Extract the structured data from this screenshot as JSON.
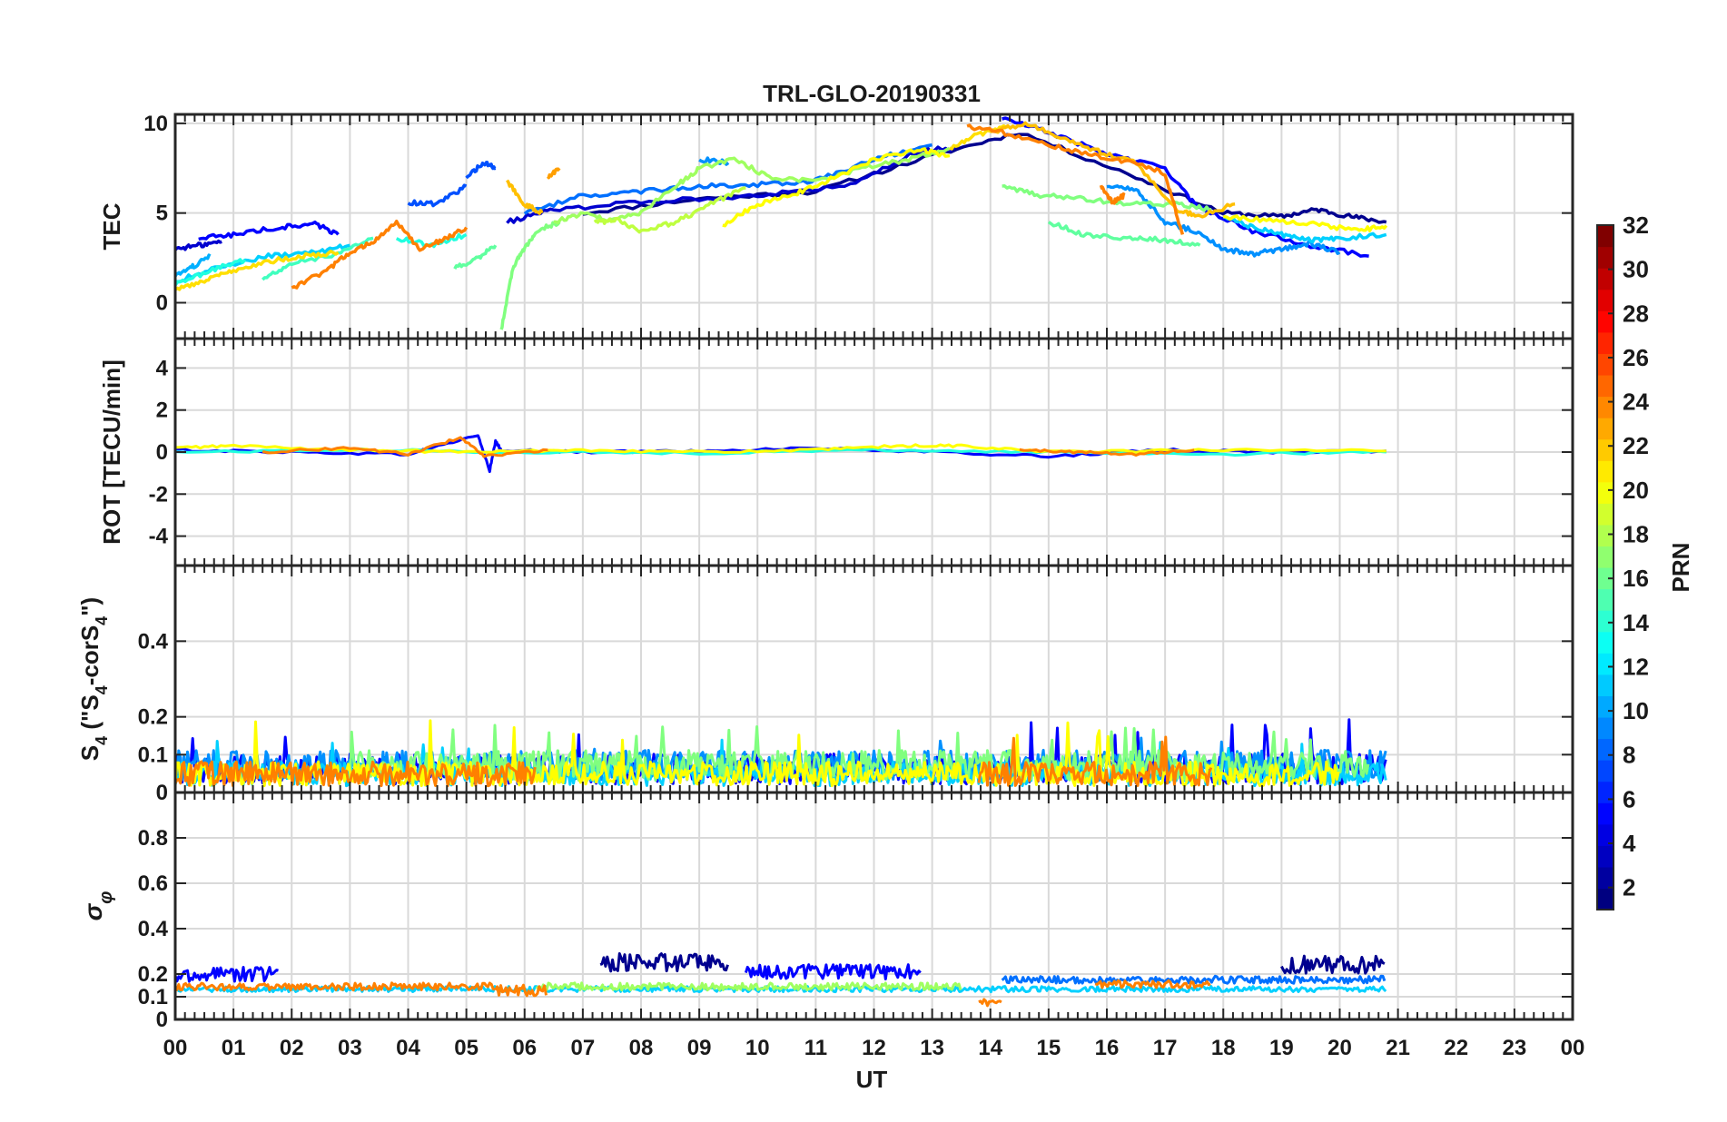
{
  "figure": {
    "title": "TRL-GLO-20190331",
    "x_label": "UT",
    "x_ticks": [
      "00",
      "01",
      "02",
      "03",
      "04",
      "05",
      "06",
      "07",
      "08",
      "09",
      "10",
      "11",
      "12",
      "13",
      "14",
      "15",
      "16",
      "17",
      "18",
      "19",
      "20",
      "21",
      "22",
      "23",
      "00"
    ],
    "colorbar_label": "PRN",
    "colorbar_ticks": [
      "2",
      "4",
      "6",
      "8",
      "10",
      "12",
      "14",
      "16",
      "18",
      "20",
      "22",
      "24",
      "26",
      "28",
      "30",
      "32"
    ]
  },
  "chart_data": [
    {
      "type": "line",
      "panel": "TEC",
      "ylabel": "TEC",
      "xlim": [
        0,
        24
      ],
      "ylim": [
        -2,
        10.5
      ],
      "y_ticks": [
        0,
        5,
        10
      ],
      "grid": true,
      "series": [
        {
          "prn": 1,
          "color": "#00008f",
          "x": [
            7.0,
            9.0,
            11.0,
            13.0,
            14.5,
            16.5,
            18.0,
            19.0,
            19.6,
            20.2,
            20.8
          ],
          "y": [
            5.0,
            5.8,
            6.2,
            8.2,
            9.5,
            7.0,
            5.0,
            4.8,
            5.2,
            4.8,
            4.5
          ]
        },
        {
          "prn": 3,
          "color": "#0000cf",
          "x": [
            0.0,
            0.4,
            0.8
          ],
          "y": [
            3.0,
            3.2,
            3.4
          ]
        },
        {
          "prn": 3,
          "color": "#0000cf",
          "x": [
            5.7,
            6.5,
            8.0,
            10.0,
            11.5,
            12.8,
            13.4
          ],
          "y": [
            4.5,
            5.2,
            5.6,
            6.0,
            6.5,
            8.5,
            8.6
          ]
        },
        {
          "prn": 4,
          "color": "#0000ff",
          "x": [
            0.4,
            1.0,
            1.8,
            2.4,
            2.8
          ],
          "y": [
            3.6,
            3.8,
            4.2,
            4.4,
            3.8
          ]
        },
        {
          "prn": 4,
          "color": "#0000ff",
          "x": [
            14.2,
            15.0,
            16.0,
            17.0,
            17.5,
            18.5,
            19.5,
            20.5
          ],
          "y": [
            10.3,
            9.5,
            8.3,
            7.5,
            5.5,
            4.0,
            3.2,
            2.6
          ]
        },
        {
          "prn": 8,
          "color": "#0050ff",
          "x": [
            4.0,
            4.5,
            5.0
          ],
          "y": [
            5.6,
            5.5,
            6.5
          ]
        },
        {
          "prn": 8,
          "color": "#0050ff",
          "x": [
            5.0,
            5.3,
            5.5
          ],
          "y": [
            7.0,
            7.8,
            7.5
          ]
        },
        {
          "prn": 9,
          "color": "#0070ff",
          "x": [
            6.0,
            7.0,
            8.0,
            9.0,
            10.0,
            11.0,
            12.0,
            13.0
          ],
          "y": [
            5.0,
            6.0,
            6.2,
            6.5,
            6.6,
            6.8,
            8.0,
            8.8
          ]
        },
        {
          "prn": 10,
          "color": "#0090ff",
          "x": [
            9.0,
            9.5
          ],
          "y": [
            8.0,
            7.8
          ]
        },
        {
          "prn": 10,
          "color": "#0090ff",
          "x": [
            16.0,
            16.5,
            17.0,
            17.5,
            18.0,
            18.5,
            19.0,
            19.5,
            20.0
          ],
          "y": [
            6.5,
            6.3,
            4.5,
            4.0,
            3.0,
            2.7,
            3.0,
            3.3,
            2.8
          ]
        },
        {
          "prn": 12,
          "color": "#00b0ff",
          "x": [
            0.0,
            0.3,
            0.6
          ],
          "y": [
            1.5,
            2.0,
            2.6
          ]
        },
        {
          "prn": 13,
          "color": "#00d0ff",
          "x": [
            0.0,
            0.8,
            1.6,
            2.4,
            3.0
          ],
          "y": [
            1.2,
            2.0,
            2.6,
            2.8,
            3.2
          ]
        },
        {
          "prn": 13,
          "color": "#00d0ff",
          "x": [
            18.0,
            18.5,
            19.0,
            19.5,
            20.0,
            20.8
          ],
          "y": [
            4.8,
            4.2,
            3.8,
            3.5,
            3.6,
            3.8
          ]
        },
        {
          "prn": 14,
          "color": "#20ffdf",
          "x": [
            0.0,
            0.6,
            1.2
          ],
          "y": [
            1.0,
            1.8,
            2.4
          ]
        },
        {
          "prn": 14,
          "color": "#20ffdf",
          "x": [
            3.8,
            4.4,
            5.0
          ],
          "y": [
            3.6,
            3.2,
            3.8
          ]
        },
        {
          "prn": 15,
          "color": "#40ffbf",
          "x": [
            1.5,
            2.0,
            2.8,
            3.4
          ],
          "y": [
            1.3,
            2.2,
            2.7,
            3.6
          ]
        },
        {
          "prn": 16,
          "color": "#60ff9f",
          "x": [
            4.8,
            5.2,
            5.5
          ],
          "y": [
            1.9,
            2.5,
            3.2
          ]
        },
        {
          "prn": 16,
          "color": "#60ff9f",
          "x": [
            15.0,
            15.6,
            16.4,
            17.0,
            17.6
          ],
          "y": [
            4.5,
            3.8,
            3.6,
            3.5,
            3.2
          ]
        },
        {
          "prn": 17,
          "color": "#80ff7f",
          "x": [
            14.2,
            14.8,
            15.6,
            16.4,
            17.2,
            17.8
          ],
          "y": [
            6.5,
            6.0,
            5.8,
            5.5,
            5.5,
            5.2
          ]
        },
        {
          "prn": 17,
          "color": "#80ff7f",
          "x": [
            5.6,
            5.8,
            6.0,
            6.2,
            6.6
          ],
          "y": [
            -1.5,
            2.0,
            3.0,
            4.0,
            4.5
          ]
        },
        {
          "prn": 18,
          "color": "#9fff60",
          "x": [
            6.5,
            7.0,
            7.5,
            8.0,
            8.6,
            9.0,
            9.6,
            10.2,
            11.0,
            11.8,
            12.6,
            13.3
          ],
          "y": [
            4.5,
            5.0,
            4.6,
            5.0,
            6.5,
            7.5,
            8.0,
            7.0,
            6.8,
            7.5,
            8.0,
            8.6
          ]
        },
        {
          "prn": 19,
          "color": "#bfff40",
          "x": [
            7.2,
            7.6,
            8.0,
            8.6,
            9.2,
            9.8
          ],
          "y": [
            4.5,
            4.6,
            4.0,
            4.5,
            5.5,
            6.4
          ]
        },
        {
          "prn": 20,
          "color": "#ffff00",
          "x": [
            9.4,
            10.0,
            10.6,
            11.2,
            12.0,
            12.8,
            13.3
          ],
          "y": [
            4.3,
            5.5,
            6.0,
            6.8,
            8.0,
            8.5,
            8.2
          ]
        },
        {
          "prn": 20,
          "color": "#ffff00",
          "x": [
            18.0,
            18.8,
            19.6,
            20.3,
            20.8
          ],
          "y": [
            4.8,
            4.6,
            4.4,
            4.0,
            4.3
          ]
        },
        {
          "prn": 21,
          "color": "#ffdf00",
          "x": [
            0.0,
            0.5,
            1.0,
            1.6,
            2.2,
            2.8
          ],
          "y": [
            0.7,
            1.2,
            1.8,
            2.3,
            2.6,
            2.8
          ]
        },
        {
          "prn": 21,
          "color": "#ffdf00",
          "x": [
            13.3,
            13.8,
            14.3
          ],
          "y": [
            8.6,
            9.4,
            9.8
          ]
        },
        {
          "prn": 22,
          "color": "#ffbf00",
          "x": [
            5.7,
            6.0,
            6.3
          ],
          "y": [
            6.8,
            5.5,
            5.0
          ]
        },
        {
          "prn": 22,
          "color": "#ffbf00",
          "x": [
            14.0,
            14.6,
            15.2,
            15.8,
            16.5,
            17.2,
            17.6,
            18.2
          ],
          "y": [
            9.5,
            10.0,
            9.2,
            8.5,
            7.8,
            5.2,
            4.8,
            5.5
          ]
        },
        {
          "prn": 23,
          "color": "#ff9f00",
          "x": [
            6.4,
            6.6
          ],
          "y": [
            7.0,
            7.5
          ]
        },
        {
          "prn": 24,
          "color": "#ff8000",
          "x": [
            2.0,
            2.6,
            3.0,
            3.4,
            3.8,
            4.2,
            4.6,
            5.0
          ],
          "y": [
            0.8,
            1.8,
            2.8,
            3.4,
            4.5,
            3.0,
            3.5,
            4.2
          ]
        },
        {
          "prn": 24,
          "color": "#ff8000",
          "x": [
            13.6,
            14.2,
            15.0,
            15.8,
            16.5,
            17.0,
            17.3
          ],
          "y": [
            9.8,
            9.5,
            8.8,
            8.2,
            7.8,
            7.2,
            3.8
          ]
        },
        {
          "prn": 24,
          "color": "#ff8000",
          "x": [
            15.9,
            16.1,
            16.3
          ],
          "y": [
            6.5,
            5.6,
            6.0
          ]
        }
      ]
    },
    {
      "type": "line",
      "panel": "ROT",
      "ylabel": "ROT [TECU/min]",
      "xlim": [
        0,
        24
      ],
      "ylim": [
        -5.4,
        5.4
      ],
      "y_ticks": [
        -4,
        -2,
        0,
        2,
        4
      ],
      "grid": true,
      "series": [
        {
          "prn": 4,
          "color": "#0000ff",
          "x": [
            0,
            2,
            4,
            5.2,
            5.4,
            5.5,
            5.6,
            7,
            9,
            11,
            13,
            15,
            17,
            19,
            20.8
          ],
          "y": [
            0.1,
            0.0,
            -0.1,
            0.8,
            -0.9,
            0.5,
            0.1,
            0.0,
            0.05,
            0.2,
            0.0,
            -0.2,
            0.1,
            0.0,
            0.05
          ]
        },
        {
          "prn": 14,
          "color": "#20ffdf",
          "x": [
            0,
            3,
            6,
            9,
            12,
            15,
            18,
            20.8
          ],
          "y": [
            0.0,
            0.1,
            0.0,
            -0.05,
            0.1,
            0.0,
            -0.1,
            0.0
          ]
        },
        {
          "prn": 20,
          "color": "#ffff00",
          "x": [
            0,
            1,
            3,
            5,
            7,
            9,
            11,
            12.5,
            13.5,
            15,
            18,
            20.8
          ],
          "y": [
            0.2,
            0.3,
            0.1,
            0.0,
            0.1,
            0.0,
            0.1,
            0.3,
            0.3,
            0.0,
            0.1,
            0.05
          ]
        },
        {
          "prn": 24,
          "color": "#ff8000",
          "x": [
            1.5,
            3,
            4,
            4.9,
            5.3,
            6.4
          ],
          "y": [
            0.0,
            0.2,
            -0.1,
            0.7,
            -0.2,
            0.1
          ]
        },
        {
          "prn": 24,
          "color": "#ff8000",
          "x": [
            14.5,
            15.5,
            16.5,
            17.5
          ],
          "y": [
            0.1,
            0.0,
            -0.1,
            0.1
          ]
        }
      ]
    },
    {
      "type": "line",
      "panel": "S4",
      "ylabel": "S4 (\"S4-corS4\")",
      "xlim": [
        0,
        24
      ],
      "ylim": [
        0,
        0.6
      ],
      "y_ticks": [
        0,
        0.1,
        0.2,
        0.4
      ],
      "grid": true,
      "series": [
        {
          "prn": 4,
          "color": "#0000ff",
          "base": 0.05,
          "amp": 0.05,
          "x_range": [
            0,
            20.8
          ],
          "peak": 0.2
        },
        {
          "prn": 10,
          "color": "#0090ff",
          "base": 0.06,
          "amp": 0.05,
          "x_range": [
            0,
            20.8
          ],
          "peak": 0.15
        },
        {
          "prn": 13,
          "color": "#00d0ff",
          "base": 0.04,
          "amp": 0.04,
          "x_range": [
            0,
            20.8
          ],
          "peak": 0.14
        },
        {
          "prn": 17,
          "color": "#80ff7f",
          "base": 0.06,
          "amp": 0.05,
          "x_range": [
            3,
            20.5
          ],
          "peak": 0.18
        },
        {
          "prn": 20,
          "color": "#ffff00",
          "base": 0.04,
          "amp": 0.04,
          "x_range": [
            0,
            20
          ],
          "peak": 0.19
        },
        {
          "prn": 24,
          "color": "#ff8000",
          "base": 0.04,
          "amp": 0.04,
          "x_range": [
            0,
            6.2
          ],
          "peak": 0.12
        },
        {
          "prn": 24,
          "color": "#ff8000",
          "base": 0.04,
          "amp": 0.04,
          "x_range": [
            13.8,
            17.8
          ],
          "peak": 0.16
        }
      ]
    },
    {
      "type": "line",
      "panel": "sigma-phi",
      "ylabel": "σφ",
      "xlim": [
        0,
        24
      ],
      "ylim": [
        0,
        1
      ],
      "y_ticks": [
        0,
        0.1,
        0.2,
        0.4,
        0.6,
        0.8
      ],
      "grid": true,
      "series": [
        {
          "prn": 1,
          "color": "#00008f",
          "base": 0.24,
          "amp": 0.05,
          "x_range": [
            7.3,
            9.5
          ]
        },
        {
          "prn": 1,
          "color": "#00008f",
          "base": 0.23,
          "amp": 0.05,
          "x_range": [
            19.0,
            20.8
          ]
        },
        {
          "prn": 4,
          "color": "#0000ff",
          "base": 0.19,
          "amp": 0.04,
          "x_range": [
            0,
            1.8
          ]
        },
        {
          "prn": 4,
          "color": "#0000ff",
          "base": 0.2,
          "amp": 0.04,
          "x_range": [
            9.8,
            12.8
          ]
        },
        {
          "prn": 9,
          "color": "#0070ff",
          "base": 0.17,
          "amp": 0.02,
          "x_range": [
            14.2,
            20.8
          ]
        },
        {
          "prn": 13,
          "color": "#00d0ff",
          "base": 0.13,
          "amp": 0.015,
          "x_range": [
            0,
            20.8
          ]
        },
        {
          "prn": 18,
          "color": "#9fff60",
          "base": 0.14,
          "amp": 0.02,
          "x_range": [
            6.2,
            13.5
          ]
        },
        {
          "prn": 24,
          "color": "#ff8000",
          "base": 0.14,
          "amp": 0.02,
          "x_range": [
            0,
            5.5
          ]
        },
        {
          "prn": 24,
          "color": "#ff8000",
          "base": 0.12,
          "amp": 0.03,
          "x_range": [
            5.5,
            6.4
          ]
        },
        {
          "prn": 24,
          "color": "#ff8000",
          "base": 0.07,
          "amp": 0.02,
          "x_range": [
            13.8,
            14.2
          ]
        },
        {
          "prn": 24,
          "color": "#ff8000",
          "base": 0.15,
          "amp": 0.02,
          "x_range": [
            15.8,
            17.8
          ]
        }
      ]
    }
  ]
}
